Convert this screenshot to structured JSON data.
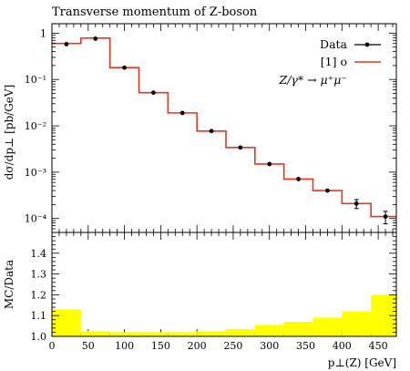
{
  "chart_data": {
    "type": "histogram",
    "title": "Transverse momentum of Z-boson",
    "x_axis": {
      "label": "p⊥(Z) [GeV]",
      "range": [
        0,
        475
      ],
      "ticks": [
        0,
        50,
        100,
        150,
        200,
        250,
        300,
        350,
        400,
        450
      ],
      "tick_labels": [
        "0",
        "50",
        "100",
        "150",
        "200",
        "250",
        "300",
        "350",
        "400",
        "450"
      ],
      "minor_step": 10
    },
    "main_panel": {
      "y_label": "dσ/dp⊥ [pb/GeV]",
      "y_scale": "log",
      "y_range": [
        5e-05,
        1.6
      ],
      "y_tick_labels": [
        "1",
        "10⁻¹",
        "10⁻²",
        "10⁻³",
        "10⁻⁴"
      ],
      "y_tick_values": [
        1,
        0.1,
        0.01,
        0.001,
        0.0001
      ],
      "series": [
        {
          "name": "Data",
          "style": "points with error bars",
          "color": "#000000",
          "x": [
            20,
            60,
            100,
            140,
            180,
            220,
            260,
            300,
            340,
            380,
            420,
            460
          ],
          "y": [
            0.58,
            0.76,
            0.18,
            0.052,
            0.019,
            0.0077,
            0.0034,
            0.0015,
            0.00071,
            0.0004,
            0.00021,
            0.00011
          ],
          "y_err_rel": [
            0.03,
            0.03,
            0.03,
            0.03,
            0.03,
            0.03,
            0.04,
            0.05,
            0.06,
            0.09,
            0.22,
            0.3
          ]
        },
        {
          "name": "[1] o",
          "style": "step",
          "color": "#e8361e",
          "bin_edges": [
            0,
            40,
            80,
            120,
            160,
            200,
            240,
            280,
            320,
            360,
            400,
            440,
            480
          ],
          "y": [
            0.6,
            0.78,
            0.18,
            0.052,
            0.019,
            0.0077,
            0.0034,
            0.0015,
            0.00071,
            0.0004,
            0.00021,
            0.00011
          ]
        }
      ],
      "legend_position": "top-right",
      "legend_note": "Z/γ* → μ⁺μ⁻"
    },
    "ratio_panel": {
      "y_label": "MC/Data",
      "y_range": [
        1.0,
        1.5
      ],
      "y_ticks": [
        1.0,
        1.1,
        1.2,
        1.3,
        1.4
      ],
      "y_tick_labels": [
        "1.0",
        "1.1",
        "1.2",
        "1.3",
        "1.4"
      ],
      "band_color": "#ffff00",
      "bin_edges": [
        0,
        40,
        80,
        120,
        160,
        200,
        240,
        280,
        320,
        360,
        400,
        440,
        480
      ],
      "band_top": [
        1.13,
        1.025,
        1.02,
        1.02,
        1.02,
        1.025,
        1.035,
        1.055,
        1.07,
        1.09,
        1.12,
        1.2,
        1.225
      ]
    }
  }
}
